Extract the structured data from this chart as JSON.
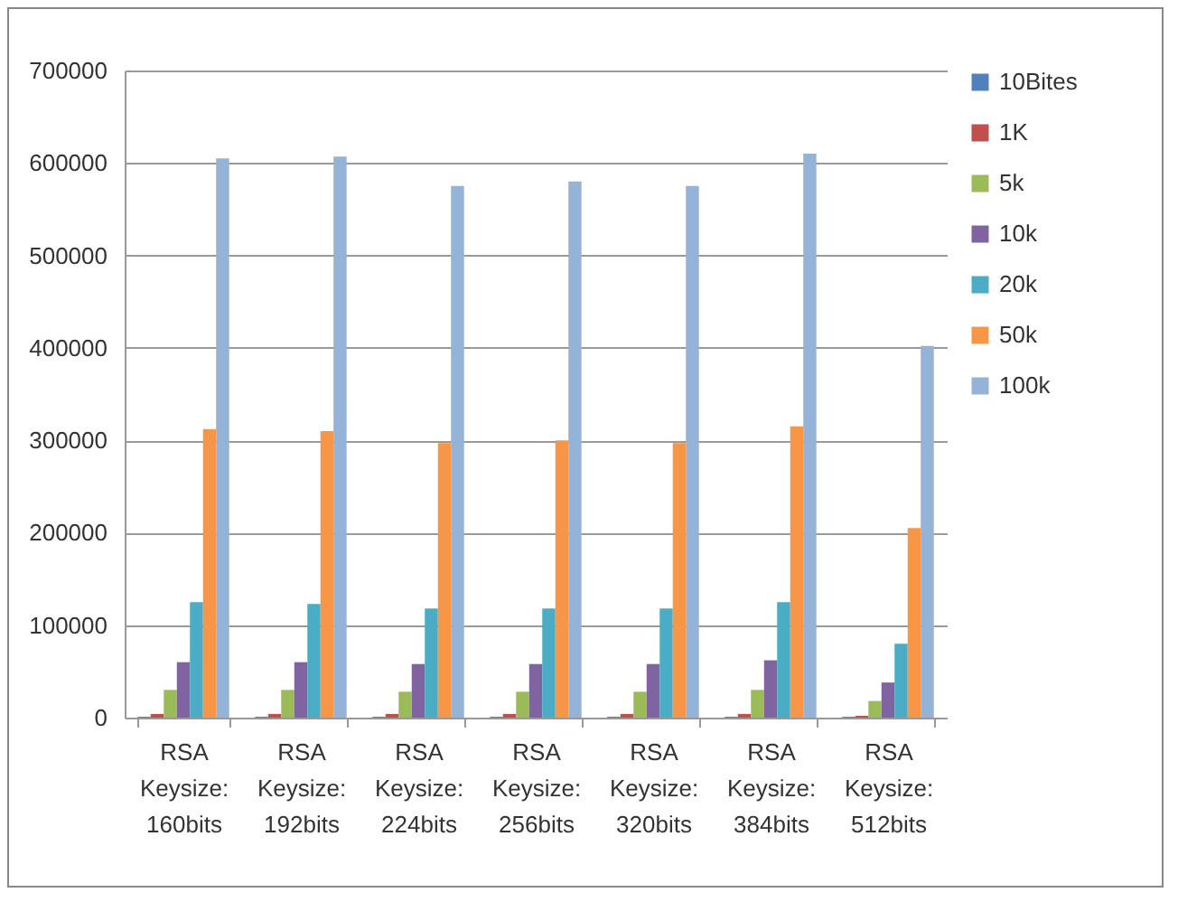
{
  "chart_data": {
    "type": "bar",
    "categories": [
      "RSA Keysize: 160bits",
      "RSA Keysize: 192bits",
      "RSA Keysize: 224bits",
      "RSA Keysize: 256bits",
      "RSA Keysize: 320bits",
      "RSA Keysize: 384bits",
      "RSA Keysize: 512bits"
    ],
    "series": [
      {
        "name": "10Bites",
        "color": "#4f81bd",
        "values": [
          1000,
          1000,
          1000,
          1000,
          1000,
          1000,
          1000
        ]
      },
      {
        "name": "1K",
        "color": "#c0504d",
        "values": [
          4000,
          4000,
          4000,
          4000,
          4000,
          4000,
          2000
        ]
      },
      {
        "name": "5k",
        "color": "#9bbb59",
        "values": [
          30000,
          30000,
          28000,
          28000,
          28000,
          30000,
          18000
        ]
      },
      {
        "name": "10k",
        "color": "#8064a2",
        "values": [
          60000,
          60000,
          58000,
          58000,
          58000,
          62000,
          38000
        ]
      },
      {
        "name": "20k",
        "color": "#4bacc6",
        "values": [
          125000,
          123000,
          118000,
          118000,
          118000,
          125000,
          80000
        ]
      },
      {
        "name": "50k",
        "color": "#f79646",
        "values": [
          312000,
          310000,
          297000,
          300000,
          297000,
          315000,
          205000
        ]
      },
      {
        "name": "100k",
        "color": "#95b3d7",
        "values": [
          605000,
          607000,
          575000,
          580000,
          575000,
          610000,
          402000
        ]
      }
    ],
    "ylim": [
      0,
      700000
    ],
    "yticks": [
      0,
      100000,
      200000,
      300000,
      400000,
      500000,
      600000,
      700000
    ],
    "grid": "y",
    "legend": "right"
  }
}
